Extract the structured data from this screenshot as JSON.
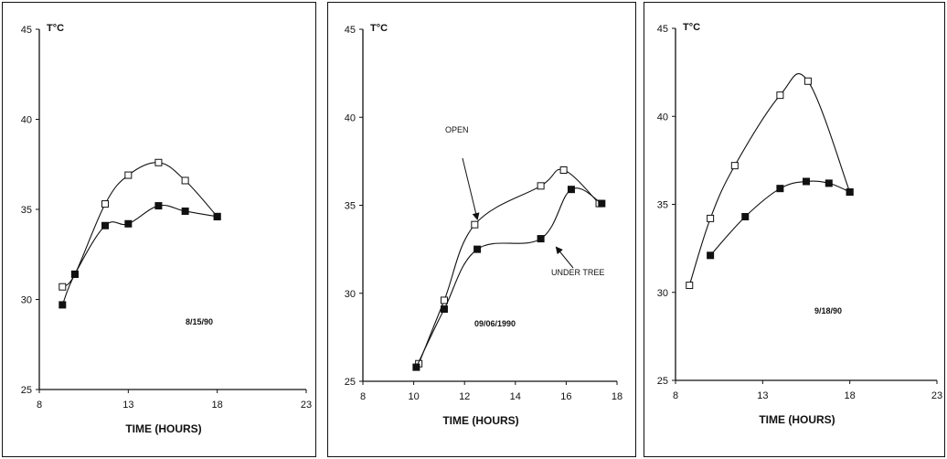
{
  "chart_data": [
    {
      "type": "line",
      "ylabel": "T°C",
      "xlabel": "TIME (HOURS)",
      "annotation": "8/15/90",
      "xlim": [
        8,
        23
      ],
      "ylim": [
        25,
        45
      ],
      "xticks": [
        "8",
        "13",
        "18",
        "23"
      ],
      "yticks": [
        "25",
        "30",
        "35",
        "40",
        "45"
      ],
      "series": [
        {
          "marker": "open-square",
          "x": [
            9.3,
            10.0,
            11.7,
            13.0,
            14.7,
            16.2,
            18.0
          ],
          "y": [
            30.7,
            31.4,
            35.3,
            36.9,
            37.6,
            36.6,
            34.6
          ]
        },
        {
          "marker": "filled-square",
          "x": [
            9.3,
            10.0,
            11.7,
            13.0,
            14.7,
            16.2,
            18.0
          ],
          "y": [
            29.7,
            31.4,
            34.1,
            34.2,
            35.2,
            34.9,
            34.6
          ]
        }
      ]
    },
    {
      "type": "line",
      "ylabel": "T°C",
      "xlabel": "TIME (HOURS)",
      "annotation": "09/06/1990",
      "xlim": [
        8,
        18
      ],
      "ylim": [
        25,
        45
      ],
      "xticks": [
        "8",
        "10",
        "12",
        "14",
        "16",
        "18"
      ],
      "yticks": [
        "25",
        "30",
        "35",
        "40",
        "45"
      ],
      "labels": {
        "open": "OPEN",
        "under_tree": "UNDER TREE"
      },
      "series": [
        {
          "marker": "open-square",
          "x": [
            10.2,
            11.2,
            12.4,
            15.0,
            15.9,
            17.3
          ],
          "y": [
            26.0,
            29.6,
            33.9,
            36.1,
            37.0,
            35.1
          ]
        },
        {
          "marker": "filled-square",
          "x": [
            10.1,
            11.2,
            12.5,
            15.0,
            16.2,
            17.4
          ],
          "y": [
            25.8,
            29.1,
            32.5,
            33.1,
            35.9,
            35.1
          ]
        }
      ]
    },
    {
      "type": "line",
      "ylabel": "T°C",
      "xlabel": "TIME (HOURS)",
      "annotation": "9/18/90",
      "xlim": [
        8,
        23
      ],
      "ylim": [
        25,
        45
      ],
      "xticks": [
        "8",
        "13",
        "18",
        "23"
      ],
      "yticks": [
        "25",
        "30",
        "35",
        "40",
        "45"
      ],
      "series": [
        {
          "marker": "open-square",
          "x": [
            8.8,
            10.0,
            11.4,
            14.0,
            15.6,
            18.0
          ],
          "y": [
            30.4,
            34.2,
            37.2,
            41.2,
            42.0,
            35.7
          ]
        },
        {
          "marker": "filled-square",
          "x": [
            10.0,
            12.0,
            14.0,
            15.5,
            16.8,
            18.0
          ],
          "y": [
            32.1,
            34.3,
            35.9,
            36.3,
            36.2,
            35.7
          ]
        }
      ]
    }
  ]
}
